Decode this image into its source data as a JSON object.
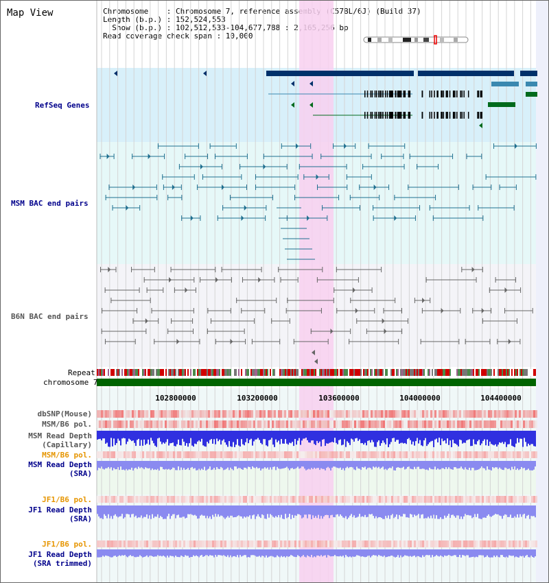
{
  "title": "Map View",
  "info": {
    "l1": "Chromosome    : Chromosome 7, reference assembly (C57BL/6J) (Build 37)",
    "l2": "Length (b.p.) : 152,524,553",
    "l3": "  Show (b.p.) : 102,512,533-104,677,788 : 2,165,256 bp",
    "l4": "Read coverage check span : 10,000"
  },
  "tracks": {
    "refseq": "RefSeq Genes",
    "msm_bac": "MSM BAC end pairs",
    "b6n_bac": "B6N BAC end pairs",
    "repeat": "Repeat",
    "chromosome": "chromosome 7",
    "dbsnp": "dbSNP(Mouse)",
    "msm_b6_pol": "MSM/B6 pol.",
    "msm_depth_cap_1": "MSM Read Depth",
    "msm_depth_cap_2": "(Capillary)",
    "msm_b6_pol_sra": "MSM/B6 pol.",
    "msm_depth_sra_1": "MSM Read Depth",
    "msm_depth_sra_2": "(SRA)",
    "jf1_b6_pol": "JF1/B6 pol.",
    "jf1_depth_1": "JF1 Read Depth",
    "jf1_depth_2": "(SRA)",
    "jf1_b6_pol_t": "JF1/B6 pol.",
    "jf1_depth_t_1": "JF1 Read Depth",
    "jf1_depth_t_2": "(SRA trimmed)"
  },
  "axis": {
    "ticks": [
      "102800000",
      "103200000",
      "103600000",
      "104000000",
      "104400000"
    ]
  },
  "colors": {
    "refseq_bg": "#d8f0fa",
    "msm_bg": "#e6f8f8",
    "b6n_bg": "#f4f4f8",
    "highlight": "#f8d0f0",
    "gene_dark": "#00306a",
    "gene_green": "#006a1c",
    "gene_teal": "#3a88b0",
    "bac_msm": "#1f6f8f",
    "bac_b6n": "#666666",
    "chromosome": "#006400",
    "depth_blue": "#3030e0",
    "depth_light": "#8a8af0",
    "snp_red": "#e84040"
  }
}
